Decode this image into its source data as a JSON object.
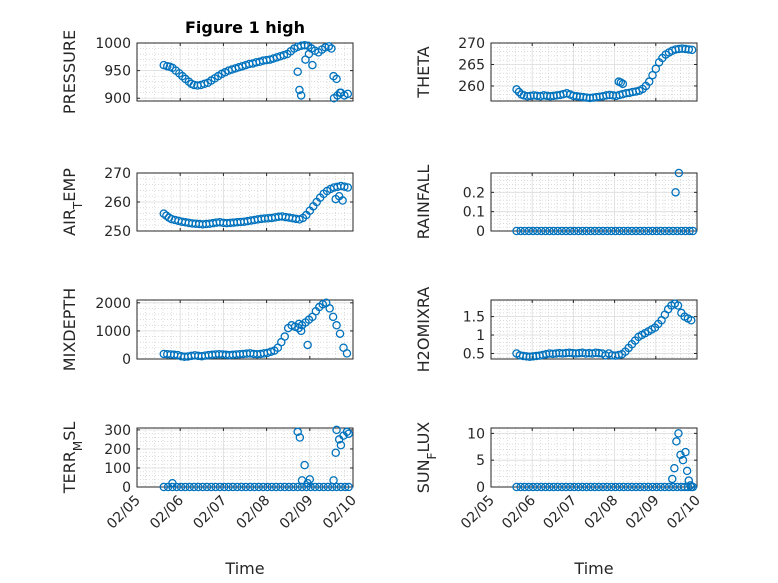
{
  "figure": {
    "background": "#ffffff",
    "marker_color": "#0072BD",
    "grid_color": "#c8c8c8"
  },
  "chart_data": [
    {
      "type": "scatter",
      "title": "Figure 1 high",
      "ylabel": "PRESSURE",
      "xlabel": "",
      "xlim": [
        0,
        5
      ],
      "ylim": [
        895,
        1000
      ],
      "yticks": [
        900,
        950,
        1000
      ],
      "x": [
        0.62,
        0.7,
        0.76,
        0.82,
        0.9,
        0.98,
        1.05,
        1.12,
        1.2,
        1.26,
        1.32,
        1.4,
        1.48,
        1.56,
        1.64,
        1.72,
        1.8,
        1.88,
        1.96,
        2.04,
        2.12,
        2.2,
        2.28,
        2.36,
        2.44,
        2.52,
        2.6,
        2.68,
        2.76,
        2.84,
        2.92,
        3.0,
        3.08,
        3.16,
        3.24,
        3.32,
        3.4,
        3.48,
        3.56,
        3.64,
        3.72,
        3.8,
        3.88,
        3.96,
        4.04,
        4.12,
        4.2,
        4.28,
        4.36,
        4.44,
        4.5,
        3.72,
        3.76,
        3.8,
        3.9,
        3.98,
        4.06,
        4.55,
        4.62,
        4.7,
        4.56,
        4.64,
        4.72,
        4.8,
        4.88
      ],
      "y": [
        960,
        958,
        957,
        955,
        950,
        945,
        940,
        935,
        930,
        926,
        924,
        923,
        924,
        926,
        928,
        932,
        936,
        940,
        944,
        947,
        950,
        952,
        954,
        956,
        958,
        960,
        962,
        963,
        965,
        966,
        968,
        969,
        970,
        972,
        974,
        976,
        978,
        980,
        985,
        990,
        993,
        995,
        996,
        995,
        990,
        986,
        983,
        988,
        992,
        994,
        990,
        948,
        915,
        905,
        970,
        980,
        960,
        940,
        935,
        910,
        900,
        905,
        910,
        905,
        908
      ]
    },
    {
      "type": "scatter",
      "title": "",
      "ylabel": "THETA",
      "xlabel": "",
      "xlim": [
        0,
        5
      ],
      "ylim": [
        256.5,
        270
      ],
      "yticks": [
        260,
        265,
        270
      ],
      "x": [
        0.62,
        0.68,
        0.74,
        0.8,
        0.88,
        0.96,
        1.04,
        1.12,
        1.2,
        1.28,
        1.36,
        1.44,
        1.52,
        1.6,
        1.68,
        1.76,
        1.84,
        1.92,
        2.0,
        2.08,
        2.16,
        2.24,
        2.32,
        2.4,
        2.48,
        2.56,
        2.64,
        2.72,
        2.8,
        2.88,
        2.96,
        3.04,
        3.12,
        3.2,
        3.28,
        3.36,
        3.44,
        3.52,
        3.6,
        3.68,
        3.76,
        3.84,
        3.92,
        4.0,
        4.08,
        4.16,
        4.24,
        4.32,
        4.4,
        4.48,
        4.56,
        4.64,
        4.72,
        4.8,
        4.88,
        3.1,
        3.15,
        3.2
      ],
      "y": [
        259.2,
        258.6,
        258.0,
        257.8,
        257.6,
        257.7,
        257.8,
        257.7,
        257.6,
        257.8,
        257.7,
        257.6,
        257.7,
        257.8,
        257.9,
        258.1,
        258.3,
        258.0,
        257.7,
        257.6,
        257.5,
        257.4,
        257.3,
        257.2,
        257.3,
        257.4,
        257.5,
        257.6,
        257.8,
        257.9,
        257.8,
        257.7,
        257.9,
        258.1,
        258.3,
        258.4,
        258.6,
        258.7,
        258.9,
        259.3,
        260.0,
        261.0,
        262.5,
        264.0,
        265.5,
        266.5,
        267.3,
        267.8,
        268.2,
        268.5,
        268.6,
        268.7,
        268.6,
        268.5,
        268.4,
        261.0,
        260.8,
        260.5
      ]
    },
    {
      "type": "scatter",
      "title": "",
      "ylabel": "AIR_TEMP",
      "xlabel": "",
      "xlim": [
        0,
        5
      ],
      "ylim": [
        250,
        270
      ],
      "yticks": [
        250,
        260,
        270
      ],
      "x": [
        0.62,
        0.68,
        0.74,
        0.8,
        0.88,
        0.96,
        1.04,
        1.12,
        1.2,
        1.28,
        1.36,
        1.44,
        1.52,
        1.6,
        1.68,
        1.76,
        1.84,
        1.92,
        2.0,
        2.08,
        2.16,
        2.24,
        2.32,
        2.4,
        2.48,
        2.56,
        2.64,
        2.72,
        2.8,
        2.88,
        2.96,
        3.04,
        3.12,
        3.2,
        3.28,
        3.36,
        3.44,
        3.52,
        3.6,
        3.68,
        3.76,
        3.84,
        3.92,
        4.0,
        4.08,
        4.16,
        4.24,
        4.32,
        4.4,
        4.48,
        4.56,
        4.64,
        4.72,
        4.8,
        4.88,
        4.6,
        4.68,
        4.76
      ],
      "y": [
        256.0,
        255.3,
        254.6,
        254.1,
        253.8,
        253.5,
        253.2,
        253.0,
        252.8,
        252.6,
        252.5,
        252.4,
        252.3,
        252.4,
        252.5,
        252.7,
        252.9,
        253.0,
        252.8,
        252.7,
        252.8,
        252.9,
        253.0,
        253.1,
        253.2,
        253.4,
        253.6,
        253.8,
        254.0,
        254.2,
        254.3,
        254.4,
        254.5,
        254.7,
        254.9,
        255.0,
        254.8,
        254.6,
        254.4,
        254.2,
        254.0,
        254.5,
        255.5,
        257.0,
        258.5,
        260.0,
        261.5,
        262.8,
        263.8,
        264.5,
        265.0,
        265.2,
        265.5,
        265.3,
        265.0,
        261.0,
        262.0,
        260.5
      ]
    },
    {
      "type": "scatter",
      "title": "",
      "ylabel": "RAINFALL",
      "xlabel": "",
      "xlim": [
        0,
        5
      ],
      "ylim": [
        0,
        0.3
      ],
      "yticks": [
        0,
        0.1,
        0.2
      ],
      "x": [
        0.62,
        0.72,
        0.82,
        0.92,
        1.02,
        1.12,
        1.22,
        1.32,
        1.42,
        1.52,
        1.62,
        1.72,
        1.82,
        1.92,
        2.02,
        2.12,
        2.22,
        2.32,
        2.42,
        2.52,
        2.62,
        2.72,
        2.82,
        2.92,
        3.02,
        3.12,
        3.22,
        3.32,
        3.42,
        3.52,
        3.62,
        3.72,
        3.82,
        3.92,
        4.02,
        4.12,
        4.22,
        4.32,
        4.42,
        4.52,
        4.62,
        4.72,
        4.82,
        4.9,
        4.48,
        4.56
      ],
      "y": [
        0,
        0,
        0,
        0,
        0,
        0,
        0,
        0,
        0,
        0,
        0,
        0,
        0,
        0,
        0,
        0,
        0,
        0,
        0,
        0,
        0,
        0,
        0,
        0,
        0,
        0,
        0,
        0,
        0,
        0,
        0,
        0,
        0,
        0,
        0,
        0,
        0,
        0,
        0,
        0,
        0,
        0,
        0,
        0,
        0.2,
        0.3
      ]
    },
    {
      "type": "scatter",
      "title": "",
      "ylabel": "MIXDEPTH",
      "xlabel": "",
      "xlim": [
        0,
        5
      ],
      "ylim": [
        0,
        2100
      ],
      "yticks": [
        0,
        1000,
        2000
      ],
      "x": [
        0.62,
        0.7,
        0.78,
        0.86,
        0.94,
        1.02,
        1.1,
        1.18,
        1.26,
        1.34,
        1.42,
        1.5,
        1.58,
        1.66,
        1.74,
        1.82,
        1.9,
        1.98,
        2.06,
        2.14,
        2.22,
        2.3,
        2.38,
        2.46,
        2.54,
        2.62,
        2.7,
        2.78,
        2.86,
        2.94,
        3.02,
        3.1,
        3.18,
        3.26,
        3.34,
        3.42,
        3.5,
        3.58,
        3.66,
        3.74,
        3.82,
        3.9,
        3.98,
        4.06,
        4.14,
        4.22,
        4.3,
        4.38,
        4.46,
        4.54,
        4.62,
        4.7,
        4.78,
        4.86,
        3.75,
        3.8,
        3.95
      ],
      "y": [
        180,
        170,
        160,
        150,
        140,
        100,
        80,
        90,
        110,
        130,
        110,
        100,
        120,
        140,
        150,
        160,
        170,
        160,
        150,
        140,
        150,
        160,
        170,
        180,
        190,
        200,
        180,
        170,
        180,
        200,
        220,
        260,
        300,
        400,
        600,
        800,
        1100,
        1200,
        1150,
        1100,
        1200,
        1300,
        1400,
        1500,
        1700,
        1850,
        1950,
        2000,
        1800,
        1500,
        1200,
        900,
        400,
        200,
        1250,
        1000,
        500
      ]
    },
    {
      "type": "scatter",
      "title": "",
      "ylabel": "H2OMIXRA",
      "xlabel": "",
      "xlim": [
        0,
        5
      ],
      "ylim": [
        0.35,
        1.95
      ],
      "yticks": [
        0.5,
        1,
        1.5
      ],
      "x": [
        0.62,
        0.7,
        0.78,
        0.86,
        0.94,
        1.02,
        1.1,
        1.18,
        1.26,
        1.34,
        1.42,
        1.5,
        1.58,
        1.66,
        1.74,
        1.82,
        1.9,
        1.98,
        2.06,
        2.14,
        2.22,
        2.3,
        2.38,
        2.46,
        2.54,
        2.62,
        2.7,
        2.78,
        2.86,
        2.94,
        3.02,
        3.1,
        3.18,
        3.26,
        3.34,
        3.42,
        3.5,
        3.58,
        3.66,
        3.74,
        3.82,
        3.9,
        3.98,
        4.06,
        4.14,
        4.22,
        4.3,
        4.38,
        4.46,
        4.54,
        4.62,
        4.7,
        4.78,
        4.86
      ],
      "y": [
        0.5,
        0.45,
        0.43,
        0.42,
        0.41,
        0.42,
        0.43,
        0.44,
        0.46,
        0.48,
        0.5,
        0.49,
        0.5,
        0.51,
        0.5,
        0.51,
        0.52,
        0.51,
        0.5,
        0.51,
        0.52,
        0.5,
        0.51,
        0.5,
        0.52,
        0.51,
        0.5,
        0.45,
        0.5,
        0.45,
        0.44,
        0.46,
        0.48,
        0.55,
        0.65,
        0.75,
        0.85,
        0.95,
        1.0,
        1.05,
        1.1,
        1.15,
        1.2,
        1.3,
        1.4,
        1.55,
        1.7,
        1.8,
        1.85,
        1.8,
        1.6,
        1.5,
        1.45,
        1.4
      ]
    },
    {
      "type": "scatter",
      "title": "",
      "ylabel": "TERR_MSL",
      "xlabel": "Time",
      "xlim": [
        0,
        5
      ],
      "ylim": [
        0,
        310
      ],
      "yticks": [
        0,
        100,
        200,
        300
      ],
      "xtick_labels": [
        "02/05",
        "02/06",
        "02/07",
        "02/08",
        "02/09",
        "02/10"
      ],
      "x": [
        0.62,
        0.72,
        0.82,
        0.92,
        1.02,
        1.12,
        1.22,
        1.32,
        1.42,
        1.52,
        1.62,
        1.72,
        1.82,
        1.92,
        2.02,
        2.12,
        2.22,
        2.32,
        2.42,
        2.52,
        2.62,
        2.72,
        2.82,
        2.92,
        3.02,
        3.12,
        3.22,
        3.32,
        3.42,
        3.52,
        3.62,
        3.72,
        3.82,
        3.92,
        4.02,
        4.12,
        4.22,
        4.32,
        4.42,
        4.52,
        4.62,
        4.72,
        4.82,
        4.9,
        0.82,
        3.72,
        3.77,
        3.82,
        3.88,
        3.95,
        4.0,
        4.55,
        4.6,
        4.62,
        4.68,
        4.72,
        4.78,
        4.86,
        4.9
      ],
      "y": [
        0,
        0,
        0,
        0,
        0,
        0,
        0,
        0,
        0,
        0,
        0,
        0,
        0,
        0,
        0,
        0,
        0,
        0,
        0,
        0,
        0,
        0,
        0,
        0,
        0,
        0,
        0,
        0,
        0,
        0,
        0,
        0,
        0,
        0,
        0,
        0,
        0,
        0,
        0,
        0,
        0,
        0,
        0,
        0,
        20,
        290,
        260,
        35,
        115,
        20,
        40,
        35,
        180,
        300,
        250,
        220,
        270,
        290,
        280
      ]
    },
    {
      "type": "scatter",
      "title": "",
      "ylabel": "SUN_FLUX",
      "xlabel": "Time",
      "xlim": [
        0,
        5
      ],
      "ylim": [
        0,
        11
      ],
      "yticks": [
        0,
        5,
        10
      ],
      "xtick_labels": [
        "02/05",
        "02/06",
        "02/07",
        "02/08",
        "02/09",
        "02/10"
      ],
      "x": [
        0.62,
        0.72,
        0.82,
        0.92,
        1.02,
        1.12,
        1.22,
        1.32,
        1.42,
        1.52,
        1.62,
        1.72,
        1.82,
        1.92,
        2.02,
        2.12,
        2.22,
        2.32,
        2.42,
        2.52,
        2.62,
        2.72,
        2.82,
        2.92,
        3.02,
        3.12,
        3.22,
        3.32,
        3.42,
        3.52,
        3.62,
        3.72,
        3.82,
        3.92,
        4.02,
        4.12,
        4.22,
        4.32,
        4.42,
        4.52,
        4.62,
        4.7,
        4.78,
        4.86,
        4.9,
        4.4,
        4.45,
        4.5,
        4.55,
        4.6,
        4.66,
        4.72,
        4.76,
        4.8,
        4.84
      ],
      "y": [
        0,
        0,
        0,
        0,
        0,
        0,
        0,
        0,
        0,
        0,
        0,
        0,
        0,
        0,
        0,
        0,
        0,
        0,
        0,
        0,
        0,
        0,
        0,
        0,
        0,
        0,
        0,
        0,
        0,
        0,
        0,
        0,
        0,
        0,
        0,
        0,
        0,
        0,
        0,
        0,
        0,
        0,
        0,
        0,
        0,
        1.5,
        3.5,
        8.5,
        10.0,
        6.0,
        5.0,
        6.5,
        3.0,
        1.2,
        0.3
      ]
    }
  ]
}
